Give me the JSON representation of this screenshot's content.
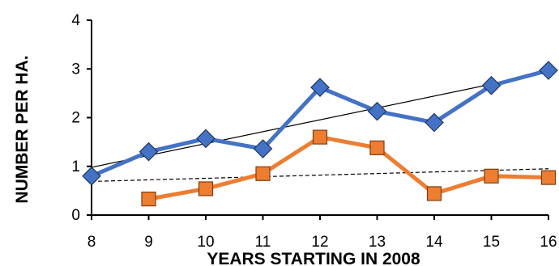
{
  "chart_data": {
    "type": "line",
    "title": "",
    "xlabel": "YEARS STARTING IN 2008",
    "ylabel": "NUMBER PER HA.",
    "xlim": [
      8,
      16
    ],
    "ylim": [
      0,
      4
    ],
    "x_ticks": [
      8,
      9,
      10,
      11,
      12,
      13,
      14,
      15,
      16
    ],
    "y_ticks": [
      0,
      1,
      2,
      3,
      4
    ],
    "grid": false,
    "legend": "none",
    "series": [
      {
        "color": "#4472C4",
        "marker": "diamond",
        "x": [
          8,
          9,
          10,
          11,
          12,
          13,
          14,
          15,
          16
        ],
        "y": [
          0.8,
          1.3,
          1.57,
          1.36,
          2.62,
          2.13,
          1.9,
          2.66,
          2.97
        ],
        "trendline": {
          "style": "solid",
          "color": "#000000",
          "y_start": 0.98,
          "y_end": 2.93
        }
      },
      {
        "color": "#ED7D31",
        "marker": "square",
        "x": [
          9,
          10,
          11,
          12,
          13,
          14,
          15,
          16
        ],
        "y": [
          0.33,
          0.54,
          0.85,
          1.6,
          1.38,
          0.44,
          0.8,
          0.77
        ],
        "trendline": {
          "style": "dashed",
          "color": "#000000",
          "y_start": 0.69,
          "y_end": 0.95
        }
      }
    ]
  }
}
